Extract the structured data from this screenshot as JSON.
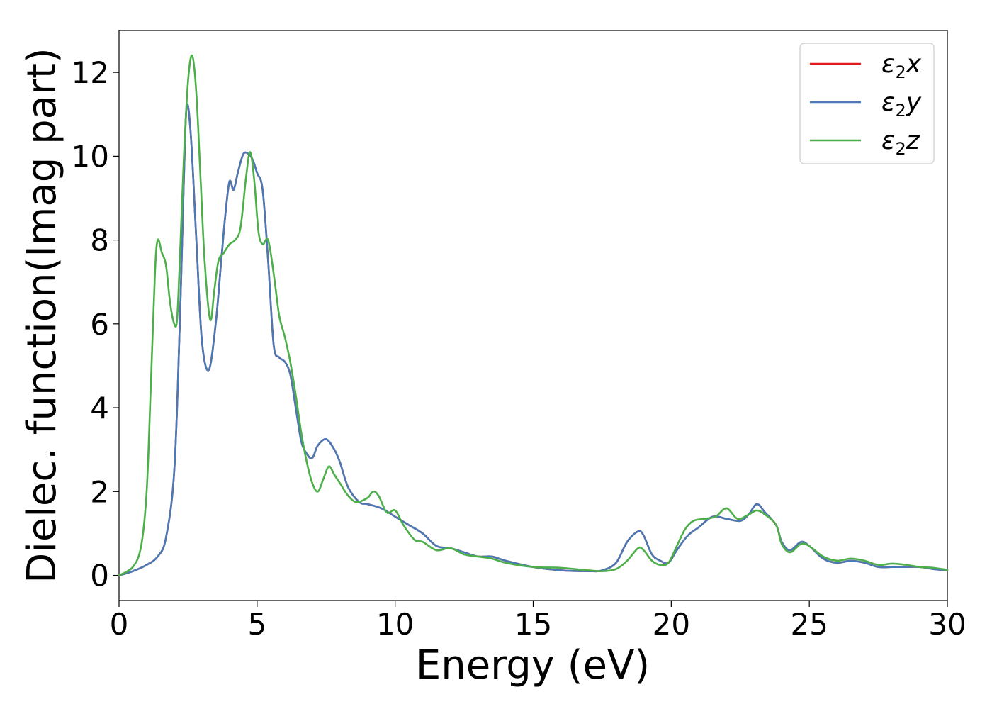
{
  "chart_data": {
    "type": "line",
    "title": "",
    "xlabel": "Energy (eV)",
    "ylabel": "Dielec. function(Imag part)",
    "xlim": [
      0,
      30
    ],
    "ylim": [
      -0.6,
      13.0
    ],
    "xticks": [
      "0",
      "5",
      "10",
      "15",
      "20",
      "25",
      "30"
    ],
    "yticks": [
      "0",
      "2",
      "4",
      "6",
      "8",
      "10",
      "12"
    ],
    "grid": false,
    "legend_position": "top-right",
    "series": [
      {
        "name": "ε2x",
        "legend": {
          "base": "ε",
          "sub": "2",
          "suffix": "x"
        },
        "color": "#e41a1c",
        "x": [
          0,
          0.5,
          1.0,
          1.4,
          1.7,
          2.0,
          2.2,
          2.35,
          2.45,
          2.6,
          2.8,
          3.0,
          3.25,
          3.5,
          3.7,
          3.85,
          4.0,
          4.15,
          4.3,
          4.5,
          4.7,
          4.85,
          5.0,
          5.2,
          5.4,
          5.6,
          5.8,
          6.0,
          6.2,
          6.4,
          6.6,
          6.8,
          7.0,
          7.2,
          7.5,
          7.8,
          8.0,
          8.3,
          8.7,
          9.0,
          9.5,
          10.0,
          10.5,
          11.0,
          11.5,
          12.0,
          12.5,
          13.0,
          13.5,
          14.0,
          15.0,
          16.0,
          17.0,
          17.5,
          18.0,
          18.4,
          18.8,
          19.0,
          19.3,
          19.6,
          19.9,
          20.2,
          20.6,
          21.0,
          21.5,
          22.0,
          22.5,
          22.8,
          23.1,
          23.4,
          23.8,
          24.0,
          24.3,
          24.7,
          25.0,
          25.5,
          26.0,
          26.5,
          27.0,
          27.5,
          28.0,
          28.5,
          29.0,
          29.5,
          30.0
        ],
        "y": [
          0.0,
          0.1,
          0.25,
          0.45,
          0.9,
          2.5,
          6.0,
          9.5,
          11.2,
          10.5,
          8.0,
          5.6,
          4.9,
          6.0,
          7.5,
          8.6,
          9.4,
          9.2,
          9.6,
          10.05,
          10.05,
          9.9,
          9.6,
          9.2,
          7.5,
          5.5,
          5.2,
          5.1,
          4.8,
          4.0,
          3.2,
          2.9,
          2.8,
          3.1,
          3.25,
          3.0,
          2.7,
          2.1,
          1.75,
          1.7,
          1.6,
          1.4,
          1.2,
          1.0,
          0.7,
          0.65,
          0.55,
          0.45,
          0.45,
          0.35,
          0.2,
          0.12,
          0.1,
          0.12,
          0.3,
          0.8,
          1.05,
          0.95,
          0.5,
          0.35,
          0.3,
          0.6,
          0.95,
          1.15,
          1.4,
          1.35,
          1.3,
          1.45,
          1.7,
          1.5,
          1.2,
          0.8,
          0.6,
          0.8,
          0.7,
          0.4,
          0.3,
          0.35,
          0.3,
          0.2,
          0.2,
          0.2,
          0.2,
          0.15,
          0.12
        ]
      },
      {
        "name": "ε2y",
        "legend": {
          "base": "ε",
          "sub": "2",
          "suffix": "y"
        },
        "color": "#4a7ab5",
        "x": [
          0,
          0.5,
          1.0,
          1.4,
          1.7,
          2.0,
          2.2,
          2.35,
          2.45,
          2.6,
          2.8,
          3.0,
          3.25,
          3.5,
          3.7,
          3.85,
          4.0,
          4.15,
          4.3,
          4.5,
          4.7,
          4.85,
          5.0,
          5.2,
          5.4,
          5.6,
          5.8,
          6.0,
          6.2,
          6.4,
          6.6,
          6.8,
          7.0,
          7.2,
          7.5,
          7.8,
          8.0,
          8.3,
          8.7,
          9.0,
          9.5,
          10.0,
          10.5,
          11.0,
          11.5,
          12.0,
          12.5,
          13.0,
          13.5,
          14.0,
          15.0,
          16.0,
          17.0,
          17.5,
          18.0,
          18.4,
          18.8,
          19.0,
          19.3,
          19.6,
          19.9,
          20.2,
          20.6,
          21.0,
          21.5,
          22.0,
          22.5,
          22.8,
          23.1,
          23.4,
          23.8,
          24.0,
          24.3,
          24.7,
          25.0,
          25.5,
          26.0,
          26.5,
          27.0,
          27.5,
          28.0,
          28.5,
          29.0,
          29.5,
          30.0
        ],
        "y": [
          0.0,
          0.1,
          0.25,
          0.45,
          0.9,
          2.5,
          6.0,
          9.5,
          11.2,
          10.5,
          8.0,
          5.6,
          4.9,
          6.0,
          7.5,
          8.6,
          9.4,
          9.2,
          9.6,
          10.05,
          10.05,
          9.9,
          9.6,
          9.2,
          7.5,
          5.5,
          5.2,
          5.1,
          4.8,
          4.0,
          3.2,
          2.9,
          2.8,
          3.1,
          3.25,
          3.0,
          2.7,
          2.1,
          1.75,
          1.7,
          1.6,
          1.4,
          1.2,
          1.0,
          0.7,
          0.65,
          0.55,
          0.45,
          0.45,
          0.35,
          0.2,
          0.12,
          0.1,
          0.12,
          0.3,
          0.8,
          1.05,
          0.95,
          0.5,
          0.35,
          0.3,
          0.6,
          0.95,
          1.15,
          1.4,
          1.35,
          1.3,
          1.45,
          1.7,
          1.5,
          1.2,
          0.8,
          0.6,
          0.8,
          0.7,
          0.4,
          0.3,
          0.35,
          0.3,
          0.2,
          0.2,
          0.2,
          0.2,
          0.15,
          0.12
        ]
      },
      {
        "name": "ε2z",
        "legend": {
          "base": "ε",
          "sub": "2",
          "suffix": "z"
        },
        "color": "#4daf4a",
        "x": [
          0,
          0.5,
          0.8,
          1.0,
          1.15,
          1.3,
          1.4,
          1.55,
          1.7,
          1.85,
          2.0,
          2.1,
          2.2,
          2.35,
          2.5,
          2.65,
          2.8,
          2.95,
          3.1,
          3.3,
          3.45,
          3.6,
          3.8,
          4.0,
          4.2,
          4.4,
          4.6,
          4.75,
          4.9,
          5.05,
          5.2,
          5.4,
          5.6,
          5.8,
          6.0,
          6.2,
          6.4,
          6.6,
          6.8,
          7.0,
          7.2,
          7.4,
          7.6,
          7.8,
          8.0,
          8.3,
          8.6,
          9.0,
          9.2,
          9.4,
          9.7,
          10.0,
          10.3,
          10.7,
          11.0,
          11.5,
          12.0,
          12.5,
          13.0,
          13.5,
          14.0,
          15.0,
          16.0,
          17.0,
          17.5,
          18.0,
          18.4,
          18.8,
          19.0,
          19.3,
          19.6,
          19.9,
          20.2,
          20.5,
          20.8,
          21.2,
          21.6,
          22.0,
          22.4,
          22.8,
          23.1,
          23.4,
          23.8,
          24.0,
          24.3,
          24.7,
          25.0,
          25.5,
          26.0,
          26.5,
          27.0,
          27.5,
          28.0,
          28.5,
          29.0,
          29.5,
          30.0
        ],
        "y": [
          0.0,
          0.2,
          0.7,
          2.0,
          4.5,
          7.2,
          8.0,
          7.7,
          7.4,
          6.5,
          6.0,
          6.1,
          7.5,
          10.0,
          11.8,
          12.4,
          11.5,
          9.5,
          7.5,
          6.1,
          6.8,
          7.5,
          7.7,
          7.9,
          8.0,
          8.3,
          9.5,
          10.1,
          9.4,
          8.2,
          7.9,
          8.0,
          7.2,
          6.2,
          5.7,
          5.1,
          4.3,
          3.4,
          2.7,
          2.2,
          2.0,
          2.3,
          2.6,
          2.4,
          2.2,
          1.9,
          1.75,
          1.85,
          2.0,
          1.9,
          1.5,
          1.55,
          1.2,
          0.85,
          0.8,
          0.6,
          0.65,
          0.5,
          0.45,
          0.4,
          0.3,
          0.2,
          0.18,
          0.12,
          0.1,
          0.15,
          0.35,
          0.65,
          0.6,
          0.35,
          0.25,
          0.3,
          0.7,
          1.1,
          1.3,
          1.35,
          1.4,
          1.6,
          1.35,
          1.45,
          1.55,
          1.45,
          1.2,
          0.75,
          0.55,
          0.75,
          0.7,
          0.45,
          0.35,
          0.4,
          0.35,
          0.25,
          0.28,
          0.25,
          0.2,
          0.18,
          0.13
        ]
      }
    ]
  }
}
